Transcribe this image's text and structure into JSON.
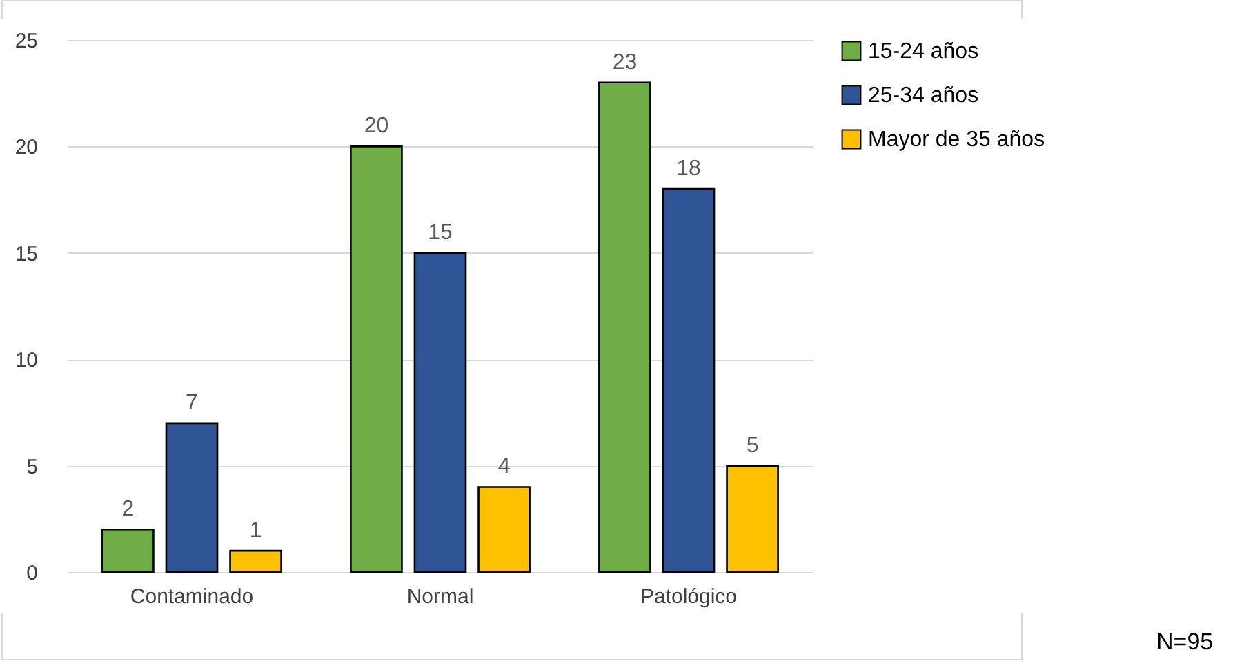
{
  "chart_data": {
    "type": "bar",
    "categories": [
      "Contaminado",
      "Normal",
      "Patológico"
    ],
    "series": [
      {
        "name": "15-24 años",
        "color": "#70ad47",
        "values": [
          2,
          20,
          23
        ]
      },
      {
        "name": "25-34 años",
        "color": "#2f5597",
        "values": [
          7,
          15,
          18
        ]
      },
      {
        "name": "Mayor de 35 años",
        "color": "#ffc000",
        "values": [
          1,
          4,
          5
        ]
      }
    ],
    "ylim": [
      0,
      25
    ],
    "yticks": [
      0,
      5,
      10,
      15,
      20,
      25
    ],
    "grid": "y",
    "legend": "right",
    "data_labels": true,
    "annotations": [
      "N=95"
    ]
  }
}
